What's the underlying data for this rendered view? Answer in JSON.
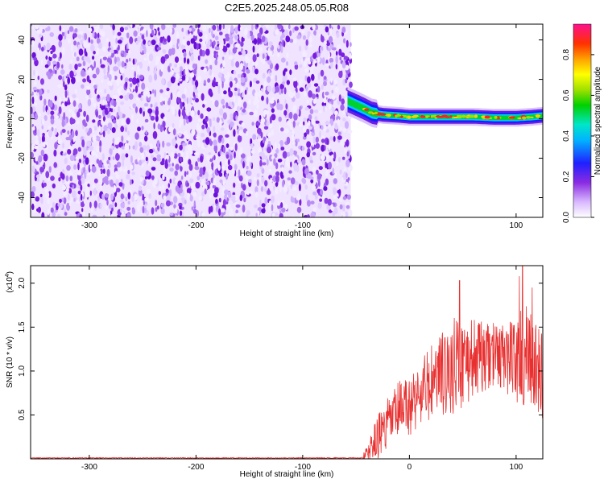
{
  "title": "C2E5.2025.248.05.05.R08",
  "chart_data": [
    {
      "type": "heatmap",
      "xlabel": "Height of straight line (km)",
      "ylabel": "Frequency (Hz)",
      "xlim": [
        -355,
        125
      ],
      "ylim": [
        -50,
        48
      ],
      "x_ticks": [
        -300,
        -200,
        -100,
        0,
        100
      ],
      "y_ticks": [
        -40,
        -20,
        0,
        20,
        40
      ],
      "noise_region_x": [
        -355,
        -55
      ],
      "signal_band": {
        "x": [
          -58,
          -50,
          -42,
          -35,
          -25,
          -10,
          0,
          20,
          40,
          60,
          80,
          100,
          115,
          125
        ],
        "freq": [
          9,
          7,
          5,
          3,
          2,
          1.5,
          1,
          1,
          1,
          1,
          0.5,
          0.5,
          1,
          1.5
        ]
      },
      "grid": false,
      "colorbar": {
        "label": "Normalized spectral amplitude",
        "range": [
          0,
          0.95
        ],
        "ticks": [
          0.0,
          0.2,
          0.4,
          0.6,
          0.8
        ]
      }
    },
    {
      "type": "line",
      "xlabel": "Height of straight line (km)",
      "ylabel": "SNR (10 * v/v)",
      "y_scale_label": "(x10",
      "y_scale_exp": "4",
      "y_scale_close": ")",
      "xlim": [
        -355,
        125
      ],
      "ylim": [
        0,
        2.2
      ],
      "x_ticks": [
        -300,
        -200,
        -100,
        0,
        100
      ],
      "y_ticks": [
        0.5,
        1.0,
        1.5,
        2.0
      ],
      "y_tick_labels": [
        "0.5",
        "1.0",
        "1.5",
        "2.0"
      ],
      "series": [
        {
          "color": "#e83030",
          "envelope": {
            "x": [
              -355,
              -45,
              -40,
              -30,
              -20,
              -10,
              0,
              10,
              20,
              30,
              40,
              50,
              60,
              70,
              80,
              90,
              100,
              110,
              120,
              125
            ],
            "mean": [
              0.01,
              0.01,
              0.05,
              0.25,
              0.4,
              0.55,
              0.6,
              0.75,
              0.85,
              0.95,
              1.05,
              1.1,
              1.15,
              1.15,
              1.2,
              1.15,
              1.15,
              1.1,
              1.0,
              0.9
            ],
            "amp": [
              0.005,
              0.005,
              0.1,
              0.25,
              0.3,
              0.35,
              0.35,
              0.4,
              0.45,
              0.5,
              0.55,
              0.55,
              0.45,
              0.4,
              0.35,
              0.4,
              0.5,
              0.65,
              0.55,
              0.5
            ]
          },
          "peaks": [
            {
              "x": 47,
              "y": 2.03
            },
            {
              "x": 103,
              "y": 2.08
            },
            {
              "x": 106,
              "y": 2.2
            },
            {
              "x": 115,
              "y": 1.95
            }
          ]
        }
      ],
      "grid": false
    }
  ]
}
